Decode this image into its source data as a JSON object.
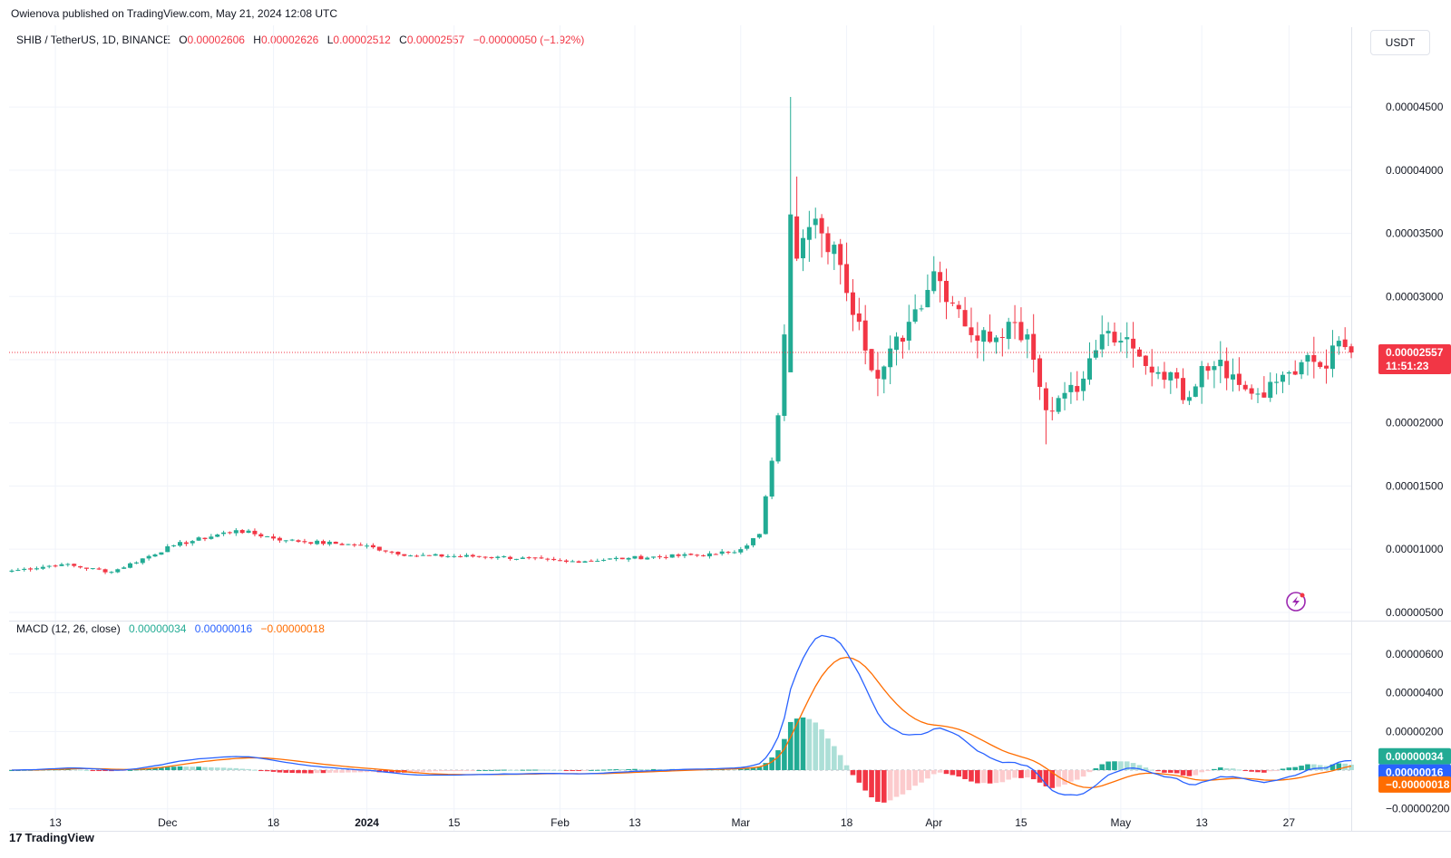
{
  "header": {
    "published_line": "Owienova published on TradingView.com, May 21, 2024 12:08 UTC"
  },
  "legend": {
    "symbol": "SHIB / TetherUS, 1D, BINANCE",
    "o_label": "O",
    "o_value": "0.00002606",
    "h_label": "H",
    "h_value": "0.00002626",
    "l_label": "L",
    "l_value": "0.00002512",
    "c_label": "C",
    "c_value": "0.00002557",
    "change": "−0.00000050 (−1.92%)"
  },
  "currency_button": "USDT",
  "price_tag": {
    "price": "0.00002557",
    "countdown": "11:51:23"
  },
  "macd_legend": {
    "name": "MACD (12, 26, close)",
    "hist": "0.00000034",
    "macd": "0.00000016",
    "signal": "−0.00000018"
  },
  "macd_tags": {
    "hist": "0.00000034",
    "macd": "0.00000016",
    "signal": "−0.00000018"
  },
  "footer": {
    "brand": "TradingView",
    "brand_mark": "17"
  },
  "colors": {
    "up": "#22ab94",
    "down": "#f23645",
    "macd": "#2962ff",
    "signal": "#ff6d00",
    "hist_up_strong": "#22ab94",
    "hist_up_weak": "#acdfd7",
    "hist_down_strong": "#f23645",
    "hist_down_weak": "#fccbcd",
    "grid": "#f0f3fa"
  },
  "chart_data": [
    {
      "type": "candlestick",
      "title": "SHIB / TetherUS, 1D, BINANCE",
      "x_ticks": [
        "13",
        "Dec",
        "18",
        "2024",
        "15",
        "Feb",
        "13",
        "Mar",
        "18",
        "Apr",
        "15",
        "May",
        "13",
        "27"
      ],
      "y_ticks": [
        "0.00004500",
        "0.00004000",
        "0.00003500",
        "0.00003000",
        "0.00002500",
        "0.00002000",
        "0.00001500",
        "0.00001000",
        "0.00000500"
      ],
      "y_range": [
        4.7e-06,
        4.86e-05
      ],
      "last_price": 2.557e-05,
      "series_note": "daily OHLC, Nov 6 2023 – May 21 2024; values approximate",
      "keyframes_close": [
        [
          0,
          8.3e-06
        ],
        [
          8,
          8.8e-06
        ],
        [
          16,
          8.2e-06
        ],
        [
          26,
          1.03e-05
        ],
        [
          36,
          1.15e-05
        ],
        [
          44,
          1.07e-05
        ],
        [
          56,
          1.03e-05
        ],
        [
          64,
          9.5e-06
        ],
        [
          78,
          9.4e-06
        ],
        [
          89,
          9e-06
        ],
        [
          99,
          9.3e-06
        ],
        [
          113,
          9.6e-06
        ],
        [
          117,
          1e-05
        ],
        [
          120,
          1.12e-05
        ],
        [
          122,
          1.7e-05
        ],
        [
          123,
          2.06e-05
        ],
        [
          124,
          2.7e-05
        ],
        [
          125,
          3.65e-05
        ],
        [
          126,
          3.3e-05
        ],
        [
          128,
          3.55e-05
        ],
        [
          130,
          3.5e-05
        ],
        [
          133,
          3.25e-05
        ],
        [
          136,
          2.8e-05
        ],
        [
          139,
          2.35e-05
        ],
        [
          144,
          2.8e-05
        ],
        [
          148,
          3.2e-05
        ],
        [
          152,
          2.9e-05
        ],
        [
          155,
          2.65e-05
        ],
        [
          160,
          2.8e-05
        ],
        [
          163,
          2.7e-05
        ],
        [
          164,
          2.5e-05
        ],
        [
          166,
          2.1e-05
        ],
        [
          170,
          2.3e-05
        ],
        [
          172,
          2.35e-05
        ],
        [
          175,
          2.7e-05
        ],
        [
          178,
          2.65e-05
        ],
        [
          182,
          2.45e-05
        ],
        [
          186,
          2.4e-05
        ],
        [
          188,
          2.18e-05
        ],
        [
          191,
          2.45e-05
        ],
        [
          194,
          2.5e-05
        ],
        [
          197,
          2.3e-05
        ],
        [
          201,
          2.2e-05
        ],
        [
          204,
          2.38e-05
        ],
        [
          207,
          2.48e-05
        ],
        [
          211,
          2.43e-05
        ],
        [
          213,
          2.65e-05
        ],
        [
          214,
          2.6e-05
        ],
        [
          215,
          2.56e-05
        ]
      ]
    },
    {
      "type": "macd",
      "title": "MACD (12, 26, close)",
      "y_ticks": [
        "0.00000600",
        "0.00000400",
        "0.00000200",
        "−0.00000200"
      ],
      "y_range": [
        -2.2e-06,
        7.4e-06
      ],
      "last_values": {
        "histogram": 3.4e-07,
        "macd": 1.6e-07,
        "signal": -1.8e-07
      }
    }
  ]
}
